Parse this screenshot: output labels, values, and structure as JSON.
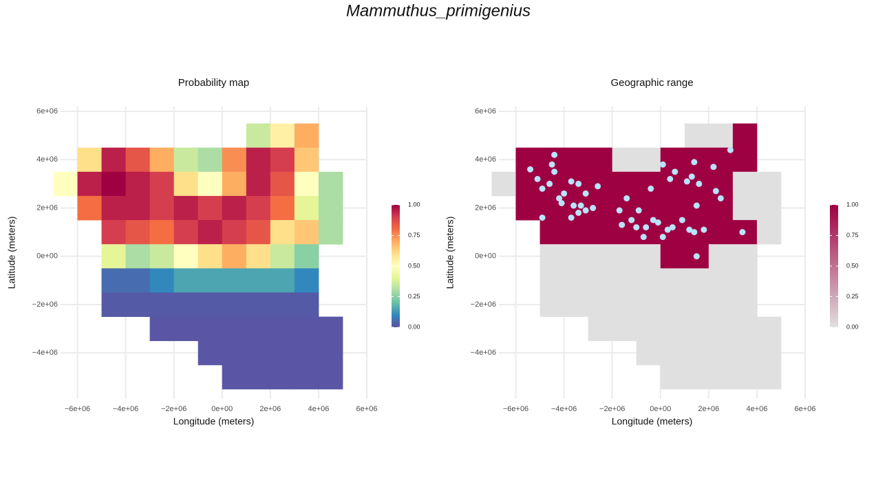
{
  "title": "Mammuthus_primigenius",
  "chart_data": [
    {
      "type": "heatmap",
      "title": "Probability map",
      "xlabel": "Longitude (meters)",
      "ylabel": "Latitude (meters)",
      "x": [
        -6500000,
        -5500000,
        -4500000,
        -3500000,
        -2500000,
        -1500000,
        -500000,
        500000,
        1500000,
        2500000,
        3500000,
        4500000,
        5500000
      ],
      "y": [
        5000000,
        4000000,
        3000000,
        2000000,
        1000000,
        0,
        -1000000,
        -2000000,
        -3000000,
        -4000000,
        -5000000
      ],
      "values": [
        [
          null,
          null,
          null,
          null,
          null,
          null,
          null,
          null,
          0.35,
          0.55,
          0.7,
          null,
          null
        ],
        [
          null,
          0.6,
          0.95,
          0.85,
          0.7,
          0.35,
          0.3,
          0.75,
          0.95,
          0.9,
          0.65,
          null,
          null
        ],
        [
          0.5,
          0.95,
          1.0,
          0.95,
          0.9,
          0.6,
          0.5,
          0.7,
          0.95,
          0.85,
          0.5,
          0.3,
          null
        ],
        [
          null,
          0.8,
          0.95,
          0.95,
          0.9,
          0.95,
          0.9,
          0.95,
          0.9,
          0.8,
          0.4,
          0.3,
          null
        ],
        [
          null,
          null,
          0.9,
          0.85,
          0.8,
          0.9,
          0.95,
          0.9,
          0.85,
          0.6,
          0.65,
          0.3,
          null
        ],
        [
          null,
          null,
          0.4,
          0.3,
          0.35,
          0.5,
          0.6,
          0.7,
          0.6,
          0.35,
          0.25,
          null,
          null
        ],
        [
          null,
          null,
          0.05,
          0.05,
          0.1,
          0.15,
          0.15,
          0.15,
          0.15,
          0.15,
          0.1,
          null,
          null
        ],
        [
          null,
          null,
          0.02,
          0.02,
          0.02,
          0.02,
          0.02,
          0.02,
          0.02,
          0.02,
          0.02,
          null,
          null
        ],
        [
          null,
          null,
          null,
          null,
          0.01,
          0.01,
          0.01,
          0.01,
          0.01,
          0.01,
          0.01,
          0.01,
          null
        ],
        [
          null,
          null,
          null,
          null,
          null,
          null,
          0.01,
          0.01,
          0.01,
          0.01,
          0.01,
          0.01,
          null
        ],
        [
          null,
          null,
          null,
          null,
          null,
          null,
          null,
          0.01,
          0.01,
          0.01,
          0.01,
          0.01,
          null
        ]
      ],
      "xlim": [
        -6700000,
        6000000
      ],
      "ylim": [
        -5900000,
        6200000
      ],
      "xticks": [
        {
          "value": -6000000,
          "label": "−6e+06"
        },
        {
          "value": -4000000,
          "label": "−4e+06"
        },
        {
          "value": -2000000,
          "label": "−2e+06"
        },
        {
          "value": 0,
          "label": "0e+00"
        },
        {
          "value": 2000000,
          "label": "2e+06"
        },
        {
          "value": 4000000,
          "label": "4e+06"
        },
        {
          "value": 6000000,
          "label": "6e+06"
        }
      ],
      "yticks": [
        {
          "value": -4000000,
          "label": "−4e+06"
        },
        {
          "value": -2000000,
          "label": "−2e+06"
        },
        {
          "value": 0,
          "label": "0e+00"
        },
        {
          "value": 2000000,
          "label": "2e+06"
        },
        {
          "value": 4000000,
          "label": "4e+06"
        },
        {
          "value": 6000000,
          "label": "6e+06"
        }
      ],
      "grid": true,
      "colors": [
        "#5e4fa2",
        "#3288bd",
        "#66c2a5",
        "#abdda4",
        "#e6f598",
        "#ffffbf",
        "#fee08b",
        "#fdae61",
        "#f46d43",
        "#d53e4f",
        "#9e0142"
      ],
      "clim": [
        0,
        1
      ],
      "cticks": [
        {
          "value": 0,
          "label": "0.00"
        },
        {
          "value": 0.25,
          "label": "0.25"
        },
        {
          "value": 0.5,
          "label": "0.50"
        },
        {
          "value": 0.75,
          "label": "0.75"
        },
        {
          "value": 1,
          "label": "1.00"
        }
      ]
    },
    {
      "type": "heatmap",
      "title": "Geographic range",
      "xlabel": "Longitude (meters)",
      "ylabel": "Latitude (meters)",
      "x": [
        -6500000,
        -5500000,
        -4500000,
        -3500000,
        -2500000,
        -1500000,
        -500000,
        500000,
        1500000,
        2500000,
        3500000,
        4500000,
        5500000
      ],
      "y": [
        5000000,
        4000000,
        3000000,
        2000000,
        1000000,
        0,
        -1000000,
        -2000000,
        -3000000,
        -4000000,
        -5000000
      ],
      "values": [
        [
          null,
          null,
          null,
          null,
          null,
          null,
          null,
          null,
          0,
          0,
          1,
          null,
          null
        ],
        [
          null,
          1,
          1,
          1,
          1,
          0,
          0,
          1,
          1,
          1,
          1,
          null,
          null
        ],
        [
          0,
          1,
          1,
          1,
          1,
          1,
          1,
          1,
          1,
          1,
          0,
          0,
          null
        ],
        [
          null,
          1,
          1,
          1,
          1,
          1,
          1,
          1,
          1,
          1,
          0,
          0,
          null
        ],
        [
          null,
          null,
          1,
          1,
          1,
          1,
          1,
          1,
          1,
          1,
          1,
          0,
          null
        ],
        [
          null,
          null,
          0,
          0,
          0,
          0,
          0,
          1,
          1,
          0,
          0,
          null,
          null
        ],
        [
          null,
          null,
          0,
          0,
          0,
          0,
          0,
          0,
          0,
          0,
          0,
          null,
          null
        ],
        [
          null,
          null,
          0,
          0,
          0,
          0,
          0,
          0,
          0,
          0,
          0,
          null,
          null
        ],
        [
          null,
          null,
          null,
          null,
          0,
          0,
          0,
          0,
          0,
          0,
          0,
          0,
          null
        ],
        [
          null,
          null,
          null,
          null,
          null,
          null,
          0,
          0,
          0,
          0,
          0,
          0,
          null
        ],
        [
          null,
          null,
          null,
          null,
          null,
          null,
          null,
          0,
          0,
          0,
          0,
          0,
          null
        ]
      ],
      "xlim": [
        -6700000,
        6000000
      ],
      "ylim": [
        -5900000,
        6200000
      ],
      "xticks": [
        {
          "value": -6000000,
          "label": "−6e+06"
        },
        {
          "value": -4000000,
          "label": "−4e+06"
        },
        {
          "value": -2000000,
          "label": "−2e+06"
        },
        {
          "value": 0,
          "label": "0e+00"
        },
        {
          "value": 2000000,
          "label": "2e+06"
        },
        {
          "value": 4000000,
          "label": "4e+06"
        },
        {
          "value": 6000000,
          "label": "6e+06"
        }
      ],
      "yticks": [
        {
          "value": -4000000,
          "label": "−4e+06"
        },
        {
          "value": -2000000,
          "label": "−2e+06"
        },
        {
          "value": 0,
          "label": "0e+00"
        },
        {
          "value": 2000000,
          "label": "2e+06"
        },
        {
          "value": 4000000,
          "label": "4e+06"
        },
        {
          "value": 6000000,
          "label": "6e+06"
        }
      ],
      "grid": true,
      "colors": [
        "#e0e0e0",
        "#9e0142"
      ],
      "clim": [
        0,
        1
      ],
      "cticks": [
        {
          "value": 0,
          "label": "0.00"
        },
        {
          "value": 0.25,
          "label": "0.25"
        },
        {
          "value": 0.5,
          "label": "0.50"
        },
        {
          "value": 0.75,
          "label": "0.75"
        },
        {
          "value": 1,
          "label": "1.00"
        }
      ],
      "points": {
        "color": "#b9e3f9",
        "x": [
          -5400000,
          -5100000,
          -4600000,
          -4500000,
          -4400000,
          -4400000,
          -4900000,
          -4200000,
          -4000000,
          -4100000,
          -4900000,
          -3700000,
          -3400000,
          -2600000,
          -3100000,
          -3600000,
          -3400000,
          -3300000,
          -3100000,
          -3700000,
          -2800000,
          -1700000,
          -1400000,
          -1600000,
          -1200000,
          -900000,
          -1000000,
          -700000,
          -400000,
          -300000,
          -100000,
          -600000,
          100000,
          400000,
          600000,
          300000,
          500000,
          900000,
          100000,
          1100000,
          1300000,
          1400000,
          1600000,
          1200000,
          1400000,
          1800000,
          1500000,
          2200000,
          2300000,
          2500000,
          2900000,
          3400000,
          1500000
        ],
        "y": [
          3600000,
          3200000,
          3000000,
          3800000,
          4200000,
          3500000,
          2800000,
          2400000,
          2600000,
          2200000,
          1600000,
          3100000,
          3000000,
          2900000,
          2600000,
          2100000,
          1800000,
          2100000,
          1900000,
          1600000,
          2000000,
          1900000,
          2400000,
          1300000,
          1500000,
          1900000,
          1200000,
          800000,
          2800000,
          1500000,
          1400000,
          1200000,
          3800000,
          3200000,
          3500000,
          1100000,
          1200000,
          1500000,
          800000,
          3100000,
          3300000,
          3900000,
          3000000,
          1100000,
          1000000,
          1100000,
          0,
          3700000,
          2700000,
          2400000,
          4400000,
          1000000,
          2100000
        ]
      }
    }
  ]
}
